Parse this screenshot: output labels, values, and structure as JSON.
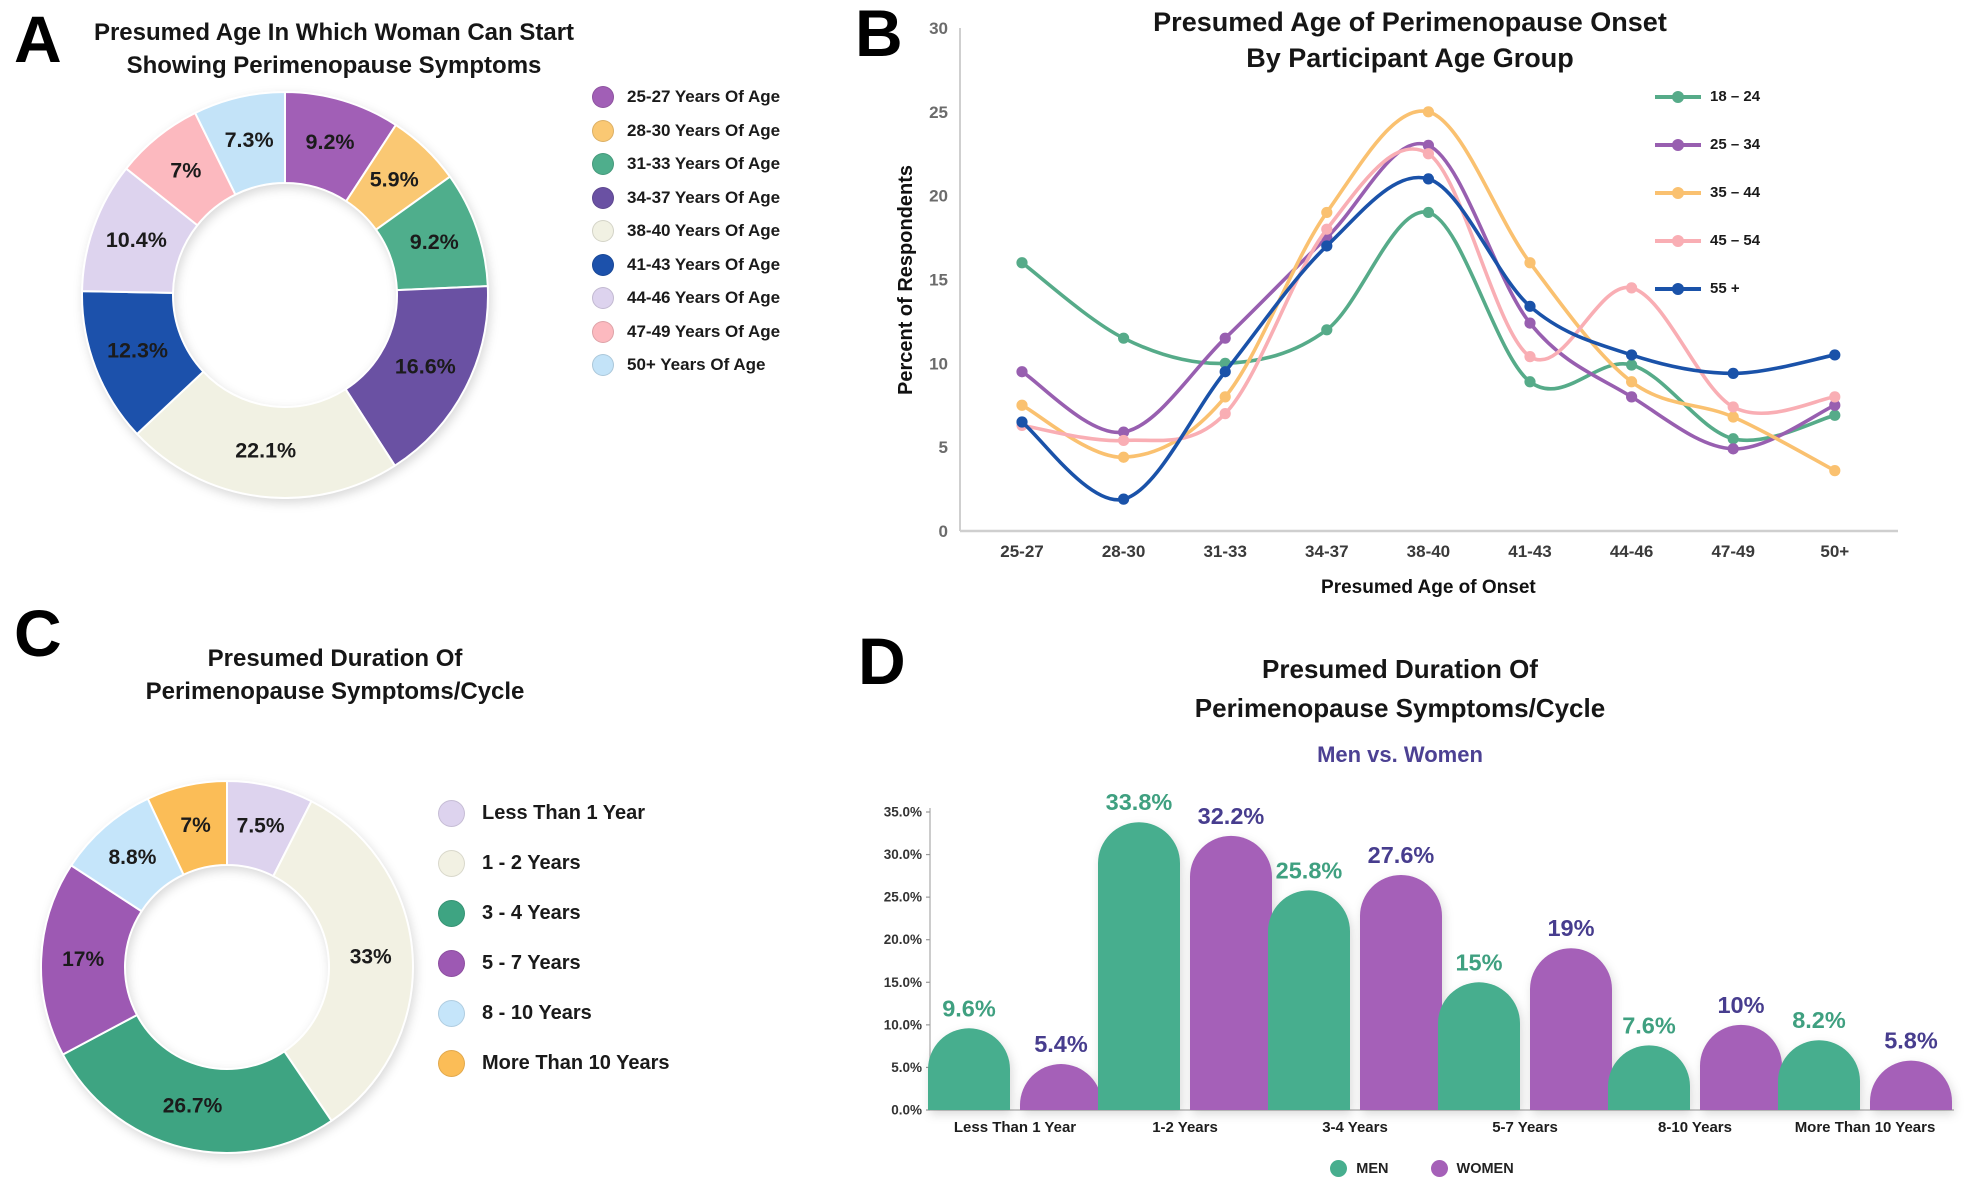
{
  "page": {
    "background": "#ffffff"
  },
  "panels": [
    {
      "id": "A",
      "label": "A",
      "title_line1": "Presumed Age In Which Woman Can Start",
      "title_line2": "Showing Perimenopause Symptoms"
    },
    {
      "id": "B",
      "label": "B",
      "title_line1": "Presumed Age of Perimenopause Onset",
      "title_line2": "By Participant Age Group"
    },
    {
      "id": "C",
      "label": "C",
      "title_line1": "Presumed Duration Of",
      "title_line2": "Perimenopause Symptoms/Cycle"
    },
    {
      "id": "D",
      "label": "D",
      "title_line1": "Presumed Duration Of",
      "title_line2": "Perimenopause Symptoms/Cycle",
      "subtitle": "Men vs. Women",
      "subtitle_color": "#4C4193"
    }
  ],
  "chart_data": [
    {
      "panel": "A",
      "type": "pie",
      "subtype": "donut",
      "title": "Presumed Age In Which Woman Can Start Showing Perimenopause Symptoms",
      "categories": [
        "25-27 Years Of Age",
        "28-30 Years Of Age",
        "31-33 Years Of Age",
        "34-37 Years Of Age",
        "38-40 Years Of Age",
        "41-43 Years Of Age",
        "44-46 Years Of Age",
        "47-49 Years Of Age",
        "50+ Years Of Age"
      ],
      "values": [
        9.2,
        5.9,
        9.2,
        16.6,
        22.1,
        12.3,
        10.4,
        7,
        7.3
      ],
      "labels": [
        "9.2%",
        "5.9%",
        "9.2%",
        "16.6%",
        "22.1%",
        "12.3%",
        "10.4%",
        "7%",
        "7.3%"
      ],
      "colors": [
        "#A15FB6",
        "#FAC873",
        "#4FAE8C",
        "#6A51A3",
        "#F1F1E3",
        "#1C51AB",
        "#DDD3EE",
        "#FCB9BF",
        "#C3E3F8"
      ],
      "start_angle_deg": 0,
      "direction": "clockwise",
      "legend_position": "right"
    },
    {
      "panel": "B",
      "type": "line",
      "title": "Presumed Age of Perimenopause Onset By Participant Age Group",
      "xlabel": "Presumed Age of Onset",
      "ylabel": "Percent of Respondents",
      "x": [
        "25-27",
        "28-30",
        "31-33",
        "34-37",
        "38-40",
        "41-43",
        "44-46",
        "47-49",
        "50+"
      ],
      "ylim": [
        0,
        30
      ],
      "yticks": [
        0,
        5,
        10,
        15,
        20,
        25,
        30
      ],
      "grid": false,
      "legend_position": "top-right",
      "series": [
        {
          "name": "18 – 24",
          "color": "#56AB89",
          "values": [
            16,
            11.5,
            10,
            12,
            19,
            8.9,
            9.9,
            5.5,
            6.9
          ]
        },
        {
          "name": "25 – 34",
          "color": "#985FB0",
          "values": [
            9.5,
            5.9,
            11.5,
            17.5,
            23,
            12.4,
            8,
            4.9,
            7.5
          ]
        },
        {
          "name": "35 – 44",
          "color": "#FAC170",
          "values": [
            7.5,
            4.4,
            8,
            19,
            25,
            16,
            8.9,
            6.8,
            3.6
          ]
        },
        {
          "name": "45 – 54",
          "color": "#F9AEB4",
          "values": [
            6.3,
            5.4,
            7,
            18,
            22.5,
            10.4,
            14.5,
            7.4,
            8
          ]
        },
        {
          "name": "55 +",
          "color": "#1A52A9",
          "values": [
            6.5,
            1.9,
            9.5,
            17,
            21,
            13.4,
            10.5,
            9.4,
            10.5
          ]
        }
      ]
    },
    {
      "panel": "C",
      "type": "pie",
      "subtype": "donut",
      "title": "Presumed Duration Of Perimenopause Symptoms/Cycle",
      "categories": [
        "Less Than 1 Year",
        "1 - 2 Years",
        "3 - 4 Years",
        "5 - 7 Years",
        "8 - 10 Years",
        "More Than 10 Years"
      ],
      "values": [
        7.5,
        33,
        26.7,
        17,
        8.8,
        7
      ],
      "labels": [
        "7.5%",
        "33%",
        "26.7%",
        "17%",
        "8.8%",
        "7%"
      ],
      "colors": [
        "#DDD3EE",
        "#F2F1E3",
        "#3EA482",
        "#9D59B3",
        "#C5E5FA",
        "#FBBD57"
      ],
      "start_angle_deg": 0,
      "direction": "clockwise",
      "legend_position": "right"
    },
    {
      "panel": "D",
      "type": "bar",
      "title": "Presumed Duration Of Perimenopause Symptoms/Cycle",
      "subtitle": "Men vs. Women",
      "categories": [
        "Less Than 1 Year",
        "1-2 Years",
        "3-4 Years",
        "5-7 Years",
        "8-10 Years",
        "More Than 10 Years"
      ],
      "ylim": [
        0,
        35
      ],
      "yticks": [
        0,
        5,
        10,
        15,
        20,
        25,
        30,
        35
      ],
      "ytick_labels": [
        "0.0%",
        "5.0%",
        "10.0%",
        "15.0%",
        "20.0%",
        "25.0%",
        "30.0%",
        "35.0%"
      ],
      "legend_position": "bottom",
      "series": [
        {
          "name": "MEN",
          "color": "#47AE8E",
          "label_color": "#3FA080",
          "values": [
            9.6,
            33.8,
            25.8,
            15,
            7.6,
            8.2
          ],
          "value_labels": [
            "9.6%",
            "33.8%",
            "25.8%",
            "15%",
            "7.6%",
            "8.2%"
          ]
        },
        {
          "name": "WOMEN",
          "color": "#A560B8",
          "label_color": "#473D8E",
          "values": [
            5.4,
            32.2,
            27.6,
            19,
            10,
            5.8
          ],
          "value_labels": [
            "5.4%",
            "32.2%",
            "27.6%",
            "19%",
            "10%",
            "5.8%"
          ]
        }
      ]
    }
  ]
}
